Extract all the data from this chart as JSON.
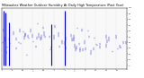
{
  "title": "Milwaukee Weather Outdoor Humidity At Daily High Temperature (Past Year)",
  "title_fontsize": 2.5,
  "bg_color": "#ffffff",
  "plot_bg": "#f8f8f8",
  "ylim": [
    -5,
    100
  ],
  "xlim": [
    0,
    365
  ],
  "ytick_vals": [
    0,
    10,
    20,
    30,
    40,
    50,
    60,
    70,
    80,
    90,
    100
  ],
  "grid_color": "#bbbbbb",
  "blue_color": "#0000cc",
  "red_color": "#cc0000",
  "num_points": 365,
  "random_seed": 42,
  "spike_positions": [
    5,
    12,
    22,
    185,
    145
  ],
  "spike_heights": [
    95,
    92,
    75,
    95,
    72
  ],
  "num_month_grids": 13
}
